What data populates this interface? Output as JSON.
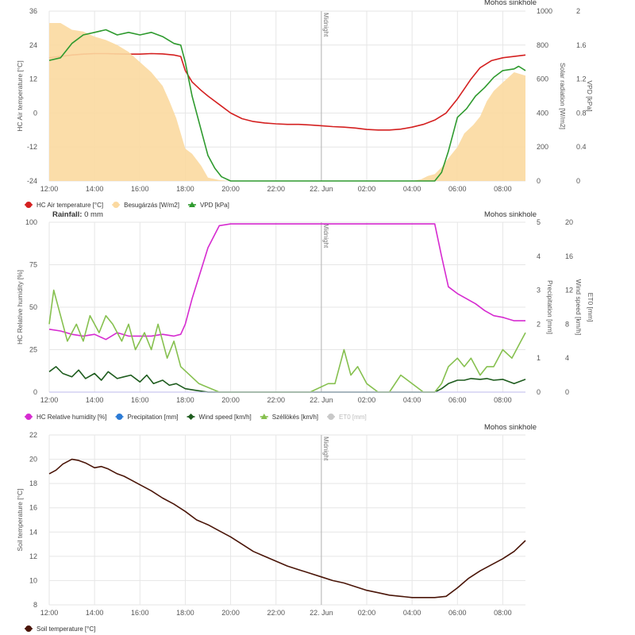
{
  "x_ticks": [
    "12:00",
    "14:00",
    "16:00",
    "18:00",
    "20:00",
    "22:00",
    "22. Jun",
    "02:00",
    "04:00",
    "06:00",
    "08:00"
  ],
  "midnight_label": "Midnight",
  "colors": {
    "air_temp": "#d42020",
    "solar": "#fbd9a0",
    "vpd": "#2e9a2e",
    "humidity": "#d62bd0",
    "precip": "#2b7bd6",
    "wind": "#1e5c1e",
    "gust": "#86c04f",
    "eto": "#c8c8c8",
    "soil": "#4a1508",
    "grid": "#e6e6e6"
  },
  "rainfall": {
    "label": "Rainfall:",
    "value": "0 mm"
  },
  "charts": [
    {
      "station": "Mohos sinkhole",
      "left_axis_title": "HC Air temperature [°C]",
      "left_ticks": [
        "36",
        "24",
        "12",
        "0",
        "-12",
        "-24"
      ],
      "right1_title": "Solar radiation [W/m2]",
      "right1_ticks": [
        "1000",
        "800",
        "600",
        "400",
        "200",
        "0"
      ],
      "right2_title": "VPD [kPa]",
      "right2_ticks": [
        "2",
        "1.6",
        "1.2",
        "0.8",
        "0.4",
        "0"
      ],
      "legend": [
        {
          "label": "HC Air temperature [°C]",
          "color": "#d42020",
          "marker": "circle"
        },
        {
          "label": "Besugárzás [W/m2]",
          "color": "#fbd9a0",
          "marker": "circle"
        },
        {
          "label": "VPD [kPa]",
          "color": "#2e9a2e",
          "marker": "triangle"
        }
      ]
    },
    {
      "station": "Mohos sinkhole",
      "left_axis_title": "HC Relative humidity [%]",
      "left_ticks": [
        "100",
        "75",
        "50",
        "25",
        "0"
      ],
      "right1_title": "Precipitation [mm]",
      "right1_ticks": [
        "5",
        "4",
        "3",
        "2",
        "1",
        "0"
      ],
      "right2_title": "Wind speed [km/h]",
      "right2_ticks": [
        "20",
        "16",
        "12",
        "8",
        "4",
        "0"
      ],
      "right3_title": "ET0 [mm]",
      "legend": [
        {
          "label": "HC Relative humidity [%]",
          "color": "#d62bd0",
          "marker": "circle"
        },
        {
          "label": "Precipitation [mm]",
          "color": "#2b7bd6",
          "marker": "dot"
        },
        {
          "label": "Wind speed [km/h]",
          "color": "#1e5c1e",
          "marker": "diamond"
        },
        {
          "label": "Széllökés [km/h]",
          "color": "#86c04f",
          "marker": "triangle"
        },
        {
          "label": "ET0 [mm]",
          "color": "#c8c8c8",
          "marker": "dot",
          "muted": true
        }
      ]
    },
    {
      "station": "Mohos sinkhole",
      "left_axis_title": "Soil temperature [°C]",
      "left_ticks": [
        "22",
        "20",
        "18",
        "16",
        "14",
        "12",
        "10",
        "8"
      ],
      "legend": [
        {
          "label": "Soil temperature [°C]",
          "color": "#4a1508",
          "marker": "circle"
        }
      ]
    }
  ],
  "chart_data": [
    {
      "type": "line",
      "x_unit": "hours since 12:00 (21 Jun)",
      "xlim": [
        0,
        21
      ],
      "ylim": [
        -24,
        36
      ],
      "y2lim": [
        0,
        1000
      ],
      "y3lim": [
        0,
        2
      ],
      "series": [
        {
          "name": "HC Air temperature [°C]",
          "axis": "left",
          "x": [
            0,
            0.5,
            1,
            1.5,
            2,
            2.5,
            3,
            3.5,
            4,
            4.5,
            5,
            5.5,
            5.8,
            6,
            6.3,
            6.7,
            7,
            7.5,
            8,
            8.5,
            9,
            9.5,
            10,
            10.5,
            11,
            11.5,
            12,
            12.5,
            13,
            13.5,
            14,
            14.5,
            15,
            15.5,
            16,
            16.5,
            17,
            17.5,
            18,
            18.3,
            18.6,
            19,
            19.5,
            20,
            20.5,
            21
          ],
          "y": [
            19.5,
            20,
            20.5,
            20.8,
            21,
            21,
            20.9,
            20.8,
            20.8,
            21,
            20.9,
            20.5,
            20,
            15,
            11,
            8,
            6,
            3,
            0,
            -2,
            -3,
            -3.5,
            -3.8,
            -4,
            -4,
            -4.2,
            -4.5,
            -4.8,
            -5,
            -5.3,
            -5.8,
            -6,
            -6,
            -5.7,
            -5,
            -4,
            -2.5,
            0,
            5,
            8.5,
            12,
            16,
            18.5,
            19.5,
            20,
            20.5
          ]
        },
        {
          "name": "Besugárzás [W/m2]",
          "axis": "right",
          "x": [
            0,
            0.5,
            1,
            1.5,
            2,
            2.5,
            3,
            3.5,
            4,
            4.5,
            5,
            5.3,
            5.6,
            6,
            6.3,
            6.7,
            7,
            7.5,
            8,
            15,
            16,
            16.4,
            16.7,
            17,
            17.3,
            17.7,
            18,
            18.3,
            18.7,
            19,
            19.3,
            19.6,
            20,
            20.5,
            21
          ],
          "y": [
            930,
            930,
            890,
            880,
            850,
            830,
            800,
            760,
            700,
            640,
            560,
            470,
            370,
            190,
            160,
            90,
            20,
            5,
            0,
            0,
            0,
            10,
            30,
            40,
            80,
            150,
            200,
            280,
            330,
            380,
            470,
            530,
            580,
            640,
            620
          ]
        },
        {
          "name": "VPD [kPa]",
          "axis": "right2",
          "x": [
            0,
            0.5,
            1,
            1.5,
            2,
            2.5,
            3,
            3.5,
            4,
            4.5,
            5,
            5.5,
            5.8,
            6,
            6.3,
            6.7,
            7,
            7.3,
            7.6,
            8,
            16,
            16.5,
            16.8,
            17,
            17.3,
            17.6,
            18,
            18.4,
            18.8,
            19.2,
            19.6,
            20,
            20.5,
            20.7,
            21
          ],
          "y": [
            1.42,
            1.45,
            1.62,
            1.72,
            1.75,
            1.78,
            1.72,
            1.75,
            1.72,
            1.75,
            1.7,
            1.62,
            1.6,
            1.4,
            1.0,
            0.6,
            0.3,
            0.15,
            0.05,
            0,
            0,
            0,
            0,
            0,
            0.1,
            0.35,
            0.75,
            0.85,
            1.0,
            1.1,
            1.22,
            1.3,
            1.32,
            1.35,
            1.3
          ]
        }
      ]
    },
    {
      "type": "line",
      "x_unit": "hours since 12:00 (21 Jun)",
      "xlim": [
        0,
        21
      ],
      "ylim": [
        0,
        100
      ],
      "y2lim": [
        0,
        5
      ],
      "y3lim": [
        0,
        20
      ],
      "series": [
        {
          "name": "HC Relative humidity [%]",
          "axis": "left",
          "x": [
            0,
            0.5,
            1,
            1.5,
            2,
            2.5,
            3,
            3.5,
            4,
            4.5,
            5,
            5.5,
            5.8,
            6,
            6.3,
            6.7,
            7,
            7.5,
            8,
            9,
            10,
            11,
            12,
            13,
            14,
            15,
            16,
            17,
            17.3,
            17.6,
            18,
            18.4,
            18.8,
            19.2,
            19.6,
            20,
            20.5,
            21
          ],
          "y": [
            37,
            36,
            34,
            33,
            34,
            31,
            35,
            33,
            33,
            33,
            34,
            33,
            34,
            40,
            55,
            72,
            85,
            98,
            99,
            99,
            99,
            99,
            99,
            99,
            99,
            99,
            99,
            99,
            80,
            62,
            58,
            55,
            52,
            48,
            45,
            44,
            42,
            42
          ]
        },
        {
          "name": "Precipitation [mm]",
          "axis": "right",
          "x": [
            0,
            21
          ],
          "y": [
            0,
            0
          ]
        },
        {
          "name": "Wind speed [km/h]",
          "axis": "right2",
          "x": [
            0,
            0.3,
            0.6,
            1,
            1.3,
            1.6,
            2,
            2.3,
            2.6,
            3,
            3.3,
            3.6,
            4,
            4.3,
            4.6,
            5,
            5.3,
            5.6,
            6,
            6.5,
            7,
            8,
            16,
            16.5,
            17,
            17.3,
            17.6,
            18,
            18.3,
            18.6,
            19,
            19.3,
            19.6,
            20,
            20.5,
            21
          ],
          "y": [
            2.4,
            3,
            2.2,
            1.8,
            2.6,
            1.6,
            2.2,
            1.4,
            2.4,
            1.6,
            1.8,
            2.0,
            1.2,
            2.0,
            1.0,
            1.4,
            0.8,
            1.0,
            0.4,
            0.2,
            0,
            0,
            0,
            0,
            0,
            0.4,
            1.0,
            1.4,
            1.4,
            1.6,
            1.5,
            1.6,
            1.4,
            1.5,
            1.0,
            1.5
          ]
        },
        {
          "name": "Széllökés [km/h]",
          "axis": "right2",
          "x": [
            0,
            0.2,
            0.5,
            0.8,
            1.2,
            1.5,
            1.8,
            2.2,
            2.5,
            2.8,
            3.2,
            3.5,
            3.8,
            4.2,
            4.5,
            4.8,
            5.2,
            5.5,
            5.8,
            6.2,
            6.6,
            7.5,
            8.5,
            9.5,
            10.5,
            11.5,
            12.3,
            12.6,
            13,
            13.3,
            13.6,
            14,
            14.5,
            15,
            15.5,
            16.5,
            17,
            17.3,
            17.6,
            18,
            18.3,
            18.6,
            19,
            19.3,
            19.6,
            20,
            20.4,
            20.8,
            21
          ],
          "y": [
            8,
            12,
            9,
            6,
            8,
            6,
            9,
            7,
            9,
            8,
            6,
            8,
            5,
            7,
            5,
            8,
            4,
            6,
            3,
            2,
            1,
            0,
            0,
            0,
            0,
            0,
            1,
            1,
            5,
            2,
            3,
            1,
            0,
            0,
            2,
            0,
            0,
            1,
            3,
            4,
            3,
            4,
            2,
            3,
            3,
            5,
            4,
            6,
            7
          ]
        },
        {
          "name": "ET0 [mm]",
          "axis": "right3",
          "x": [
            0,
            21
          ],
          "y": [
            0,
            0
          ]
        }
      ]
    },
    {
      "type": "line",
      "x_unit": "hours since 12:00 (21 Jun)",
      "xlim": [
        0,
        21
      ],
      "ylim": [
        8,
        22
      ],
      "series": [
        {
          "name": "Soil temperature [°C]",
          "axis": "left",
          "x": [
            0,
            0.3,
            0.6,
            1,
            1.3,
            1.6,
            2,
            2.3,
            2.6,
            3,
            3.3,
            3.6,
            4,
            4.5,
            5,
            5.5,
            6,
            6.5,
            7,
            7.5,
            8,
            8.5,
            9,
            9.5,
            10,
            10.5,
            11,
            11.5,
            12,
            12.5,
            13,
            13.5,
            14,
            14.5,
            15,
            15.5,
            16,
            16.5,
            17,
            17.5,
            18,
            18.5,
            19,
            19.5,
            20,
            20.5,
            21
          ],
          "y": [
            18.8,
            19.1,
            19.6,
            20,
            19.9,
            19.7,
            19.3,
            19.4,
            19.2,
            18.8,
            18.6,
            18.3,
            17.9,
            17.4,
            16.8,
            16.3,
            15.7,
            15.0,
            14.6,
            14.1,
            13.6,
            13.0,
            12.4,
            12.0,
            11.6,
            11.2,
            10.9,
            10.6,
            10.3,
            10.0,
            9.8,
            9.5,
            9.2,
            9.0,
            8.8,
            8.7,
            8.6,
            8.6,
            8.6,
            8.7,
            9.4,
            10.2,
            10.8,
            11.3,
            11.8,
            12.4,
            13.3
          ]
        }
      ]
    }
  ]
}
